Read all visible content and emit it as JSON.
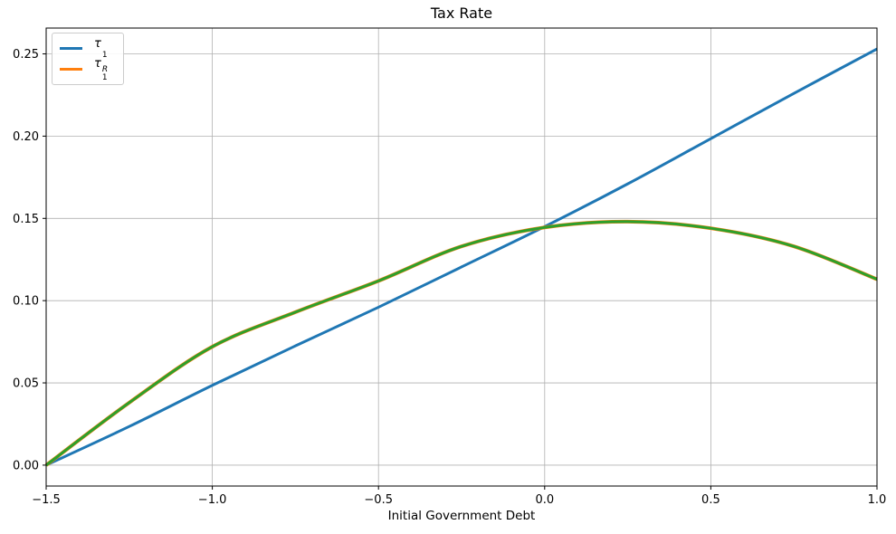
{
  "chart_data": {
    "type": "line",
    "title": "Tax Rate",
    "xlabel": "Initial Government Debt",
    "ylabel": "",
    "grid": true,
    "legend_position": "upper left",
    "xlim": [
      -1.5,
      1.0
    ],
    "ylim": [
      -0.0127,
      0.2657
    ],
    "xticks": [
      -1.5,
      -1.0,
      -0.5,
      0.0,
      0.5,
      1.0
    ],
    "xticklabels": [
      "−1.5",
      "−1.0",
      "−0.5",
      "0.0",
      "0.5",
      "1.0"
    ],
    "yticks": [
      0.0,
      0.05,
      0.1,
      0.15,
      0.2,
      0.25
    ],
    "yticklabels": [
      "0.00",
      "0.05",
      "0.10",
      "0.15",
      "0.20",
      "0.25"
    ],
    "x": [
      -1.5,
      -1.25,
      -1.0,
      -0.75,
      -0.5,
      -0.25,
      0.0,
      0.25,
      0.5,
      0.75,
      1.0
    ],
    "series": [
      {
        "name": "tau1",
        "label_base": "τ",
        "label_sub": "1",
        "label_sup": "",
        "color": "#1f77b4",
        "in_legend": true,
        "line_width": 3,
        "values": [
          0.0,
          0.0235,
          0.0485,
          0.0725,
          0.096,
          0.1205,
          0.145,
          0.171,
          0.1985,
          0.226,
          0.253
        ]
      },
      {
        "name": "tau1R",
        "label_base": "τ",
        "label_sub": "1",
        "label_sup": "R",
        "color": "#ff7f0e",
        "in_legend": true,
        "line_width": 4,
        "values": [
          0.0,
          0.038,
          0.072,
          0.093,
          0.112,
          0.133,
          0.1445,
          0.148,
          0.144,
          0.133,
          0.113
        ]
      },
      {
        "name": "unlabeled-green-overlay",
        "label_base": "",
        "label_sub": "",
        "label_sup": "",
        "color": "#2ca02c",
        "in_legend": false,
        "line_width": 3,
        "values": [
          0.0,
          0.038,
          0.072,
          0.093,
          0.112,
          0.133,
          0.1445,
          0.148,
          0.144,
          0.133,
          0.113
        ]
      }
    ],
    "grid_color": "#b0b0b0",
    "spine_color": "#000000",
    "background_color": "#ffffff"
  }
}
